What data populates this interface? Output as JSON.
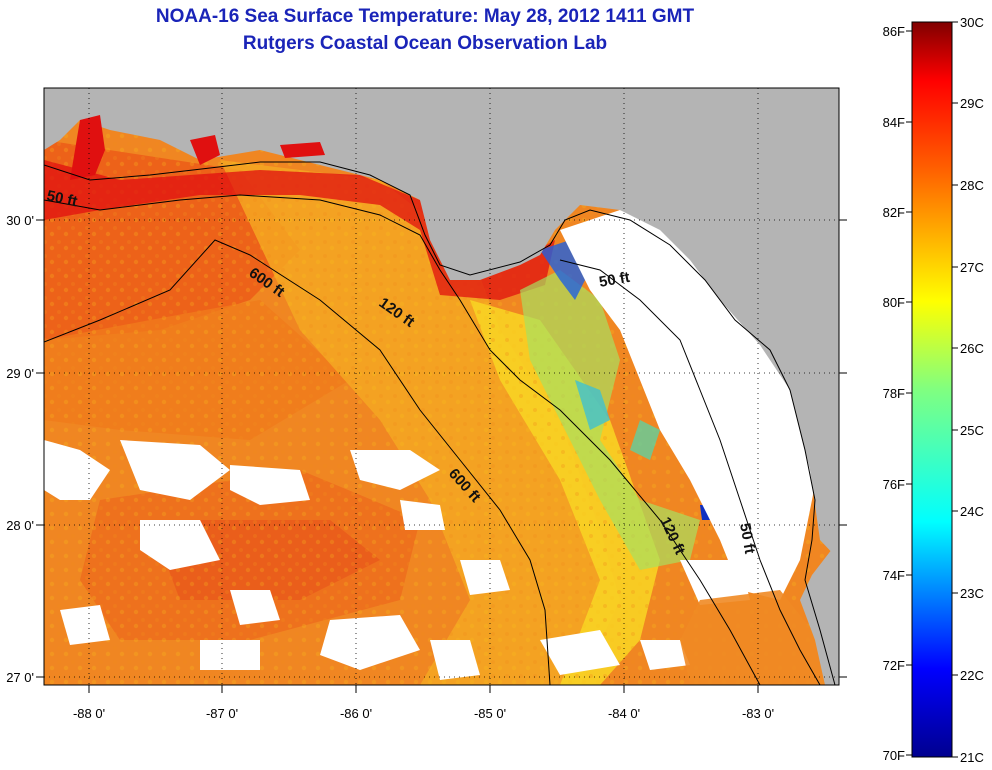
{
  "title_line1": "NOAA-16 Sea Surface Temperature:  May 28, 2012 1411 GMT",
  "title_line2": "Rutgers Coastal Ocean Observation Lab",
  "map": {
    "lon_ticks": [
      "-88 0'",
      "-87 0'",
      "-86 0'",
      "-85 0'",
      "-84 0'",
      "-83 0'"
    ],
    "lat_ticks": [
      "30 0'",
      "29 0'",
      "28 0'",
      "27 0'"
    ],
    "contour_labels": [
      "50 ft",
      "600 ft",
      "120 ft",
      "50 ft",
      "600 ft",
      "120 ft",
      "50 ft"
    ]
  },
  "colorbar": {
    "fahrenheit": [
      "86F",
      "84F",
      "82F",
      "80F",
      "78F",
      "76F",
      "74F",
      "72F",
      "70F"
    ],
    "celsius": [
      "30C",
      "29C",
      "28C",
      "27C",
      "26C",
      "25C",
      "24C",
      "23C",
      "22C",
      "21C"
    ]
  }
}
